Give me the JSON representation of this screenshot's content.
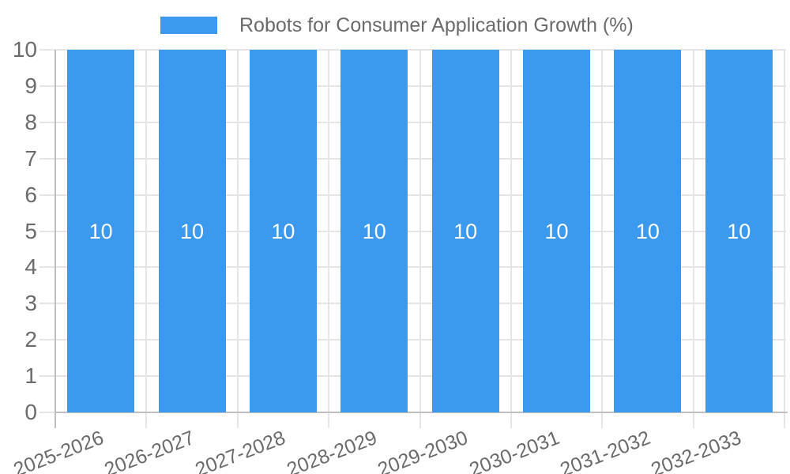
{
  "chart_data": {
    "type": "bar",
    "legend_label": "Robots for Consumer Application Growth (%)",
    "legend_position": "top",
    "categories": [
      "2025-2026",
      "2026-2027",
      "2027-2028",
      "2028-2029",
      "2029-2030",
      "2030-2031",
      "2031-2032",
      "2032-2033"
    ],
    "values": [
      10,
      10,
      10,
      10,
      10,
      10,
      10,
      10
    ],
    "bar_value_labels": [
      "10",
      "10",
      "10",
      "10",
      "10",
      "10",
      "10",
      "10"
    ],
    "title": "",
    "xlabel": "",
    "ylabel": "",
    "ylim": [
      0,
      10
    ],
    "yticks": [
      "0",
      "1",
      "2",
      "3",
      "4",
      "5",
      "6",
      "7",
      "8",
      "9",
      "10"
    ],
    "grid": true,
    "x_tick_rotation_deg": -21,
    "colors": {
      "bar": "#3B99EE",
      "bar_label_text": "#FFFFFF",
      "grid_line": "#E5E5E5",
      "axis_line": "#BFBFBF",
      "tick_text": "#6B6B6B",
      "background": "#FFFFFF"
    }
  }
}
